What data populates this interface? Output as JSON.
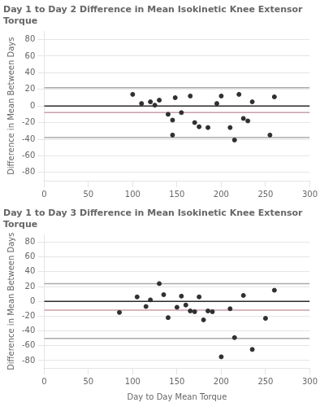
{
  "chart_data": [
    {
      "type": "scatter",
      "title": "Day 1 to Day 2 Difference in Mean Isokinetic Knee Extensor Torque",
      "ylabel": "Difference in Mean Between Days",
      "x": [
        100,
        110,
        120,
        125,
        130,
        140,
        145,
        145,
        148,
        155,
        165,
        170,
        175,
        185,
        195,
        200,
        210,
        215,
        220,
        225,
        230,
        235,
        255,
        260
      ],
      "values": [
        14,
        3,
        5,
        1,
        7,
        -10,
        -35,
        -17,
        10,
        -8,
        12,
        -20,
        -25,
        -26,
        3,
        12,
        -26,
        -41,
        14,
        -15,
        -18,
        5,
        -35,
        11
      ],
      "color": "#303030",
      "lines": [
        {
          "value": 22,
          "color": "#aaaaaa"
        },
        {
          "value": -38,
          "color": "#aaaaaa"
        },
        {
          "value": -8,
          "color": "#c8a0a8"
        },
        {
          "value": 0,
          "color": "#2a2a2a"
        }
      ],
      "xlim": [
        0,
        300
      ],
      "xticks": [
        0,
        50,
        100,
        150,
        200,
        250,
        300
      ],
      "ylim": [
        -90,
        90
      ],
      "yticks": [
        -80,
        -60,
        -40,
        -20,
        0,
        20,
        40,
        60,
        80
      ],
      "grid": "y"
    },
    {
      "type": "scatter",
      "title": "Day 1 to Day 3 Difference in Mean Isokinetic Knee Extensor Torque",
      "ylabel": "Difference in Mean Between Days",
      "xlabel": "Day to Day Mean Torque",
      "x": [
        85,
        105,
        115,
        120,
        130,
        135,
        140,
        150,
        155,
        160,
        165,
        170,
        175,
        180,
        185,
        190,
        200,
        210,
        215,
        225,
        235,
        250,
        260
      ],
      "values": [
        -15,
        6,
        -7,
        2,
        24,
        9,
        -22,
        -8,
        7,
        -5,
        -13,
        -14,
        6,
        -25,
        -13,
        -14,
        -75,
        -10,
        -49,
        8,
        -65,
        -23,
        15
      ],
      "color": "#303030",
      "lines": [
        {
          "value": 24,
          "color": "#aaaaaa"
        },
        {
          "value": -50,
          "color": "#aaaaaa"
        },
        {
          "value": -12,
          "color": "#c8a0a8"
        },
        {
          "value": 0,
          "color": "#2a2a2a"
        }
      ],
      "xlim": [
        0,
        300
      ],
      "xticks": [
        0,
        50,
        100,
        150,
        200,
        250,
        300
      ],
      "ylim": [
        -90,
        90
      ],
      "yticks": [
        -80,
        -60,
        -40,
        -20,
        0,
        20,
        40,
        60,
        80
      ],
      "grid": "y"
    }
  ]
}
